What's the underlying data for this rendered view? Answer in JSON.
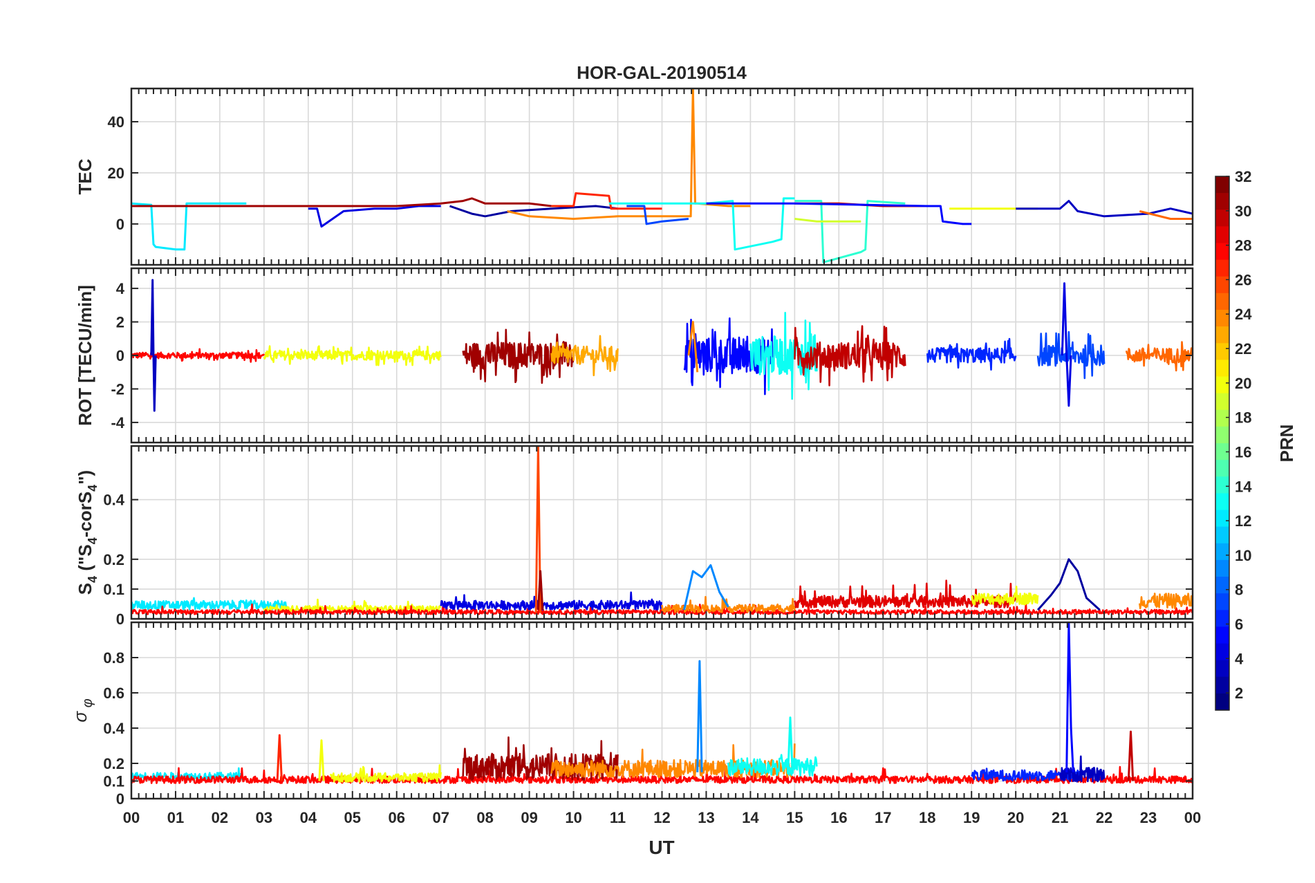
{
  "chart_data": {
    "type": "line",
    "title": "HOR-GAL-20190514",
    "xlabel": "UT",
    "x_ticks": [
      "00",
      "01",
      "02",
      "03",
      "04",
      "05",
      "06",
      "07",
      "08",
      "09",
      "10",
      "11",
      "12",
      "13",
      "14",
      "15",
      "16",
      "17",
      "18",
      "19",
      "20",
      "21",
      "22",
      "23",
      "00"
    ],
    "xlim": [
      0,
      24
    ],
    "colorbar": {
      "label": "PRN",
      "range": [
        1,
        32
      ],
      "ticks": [
        "32",
        "30",
        "28",
        "26",
        "24",
        "22",
        "20",
        "18",
        "16",
        "14",
        "12",
        "10",
        "8",
        "6",
        "4",
        "2"
      ],
      "tick_values": [
        32,
        30,
        28,
        26,
        24,
        22,
        20,
        18,
        16,
        14,
        12,
        10,
        8,
        6,
        4,
        2
      ],
      "colormap": "jet"
    },
    "panels": [
      {
        "id": "tec",
        "ylabel": "TEC",
        "ylim": [
          -16,
          53
        ],
        "y_ticks": [
          "0",
          "20",
          "40"
        ],
        "y_tick_values": [
          0,
          20,
          40
        ],
        "series": [
          {
            "name": "PRN 12",
            "prn": 12,
            "x": [
              0.0,
              0.45,
              0.5,
              0.55,
              1.0,
              1.2,
              1.25,
              1.5,
              2.0,
              2.6
            ],
            "y": [
              8,
              7.5,
              -8,
              -9,
              -10,
              -10,
              8,
              8,
              8,
              8
            ]
          },
          {
            "name": "PRN 4",
            "prn": 4,
            "x": [
              4.0,
              4.2,
              4.3,
              4.8,
              5.5,
              6.0,
              6.5,
              7.0
            ],
            "y": [
              6,
              6,
              -1,
              5,
              6,
              6,
              7,
              7
            ]
          },
          {
            "name": "PRN 31",
            "prn": 31,
            "x": [
              0.0,
              1.0,
              2.0,
              3.0,
              4.0,
              5.0,
              6.0,
              7.0,
              7.5,
              7.7,
              8.0,
              9.0,
              9.5
            ],
            "y": [
              7,
              7,
              7,
              7,
              7,
              7,
              7,
              8,
              9,
              10,
              8,
              8,
              7
            ]
          },
          {
            "name": "PRN 2",
            "prn": 2,
            "x": [
              7.2,
              7.7,
              8.0,
              8.6,
              9.5,
              10.5,
              11.0
            ],
            "y": [
              7,
              4,
              3,
              5,
              6,
              7,
              6
            ]
          },
          {
            "name": "PRN 24",
            "prn": 24,
            "x": [
              8.5,
              9.0,
              10.0,
              11.0,
              12.0,
              12.65,
              12.7,
              12.75,
              12.8,
              13.5,
              14.0
            ],
            "y": [
              5,
              3,
              2,
              3,
              3,
              3,
              53,
              8,
              8,
              7,
              7
            ]
          },
          {
            "name": "PRN 27",
            "prn": 27,
            "x": [
              9.5,
              10.0,
              10.05,
              10.8,
              10.85,
              12.0
            ],
            "y": [
              7,
              7,
              12,
              11,
              6,
              6
            ]
          },
          {
            "name": "PRN 7",
            "prn": 7,
            "x": [
              11.2,
              11.6,
              11.65,
              12.0,
              12.6
            ],
            "y": [
              7,
              7,
              0,
              1,
              2
            ]
          },
          {
            "name": "PRN 13",
            "prn": 13,
            "x": [
              10.8,
              12.0,
              13.0,
              13.6,
              13.65,
              14.5,
              14.7,
              14.75,
              15.0
            ],
            "y": [
              8,
              8,
              8,
              9,
              -10,
              -7,
              -6,
              10,
              10
            ]
          },
          {
            "name": "PRN 14",
            "prn": 14,
            "x": [
              15.0,
              15.6,
              15.65,
              16.5,
              16.6,
              16.65,
              17.5
            ],
            "y": [
              9,
              9,
              -15,
              -11,
              -10,
              9,
              8
            ]
          },
          {
            "name": "PRN 19",
            "prn": 19,
            "x": [
              15.0,
              15.5,
              16.0,
              16.5
            ],
            "y": [
              2,
              1,
              1,
              1
            ]
          },
          {
            "name": "PRN 30",
            "prn": 30,
            "x": [
              15.0,
              16.0,
              17.0,
              18.0,
              18.3
            ],
            "y": [
              8,
              8,
              7,
              7,
              7
            ]
          },
          {
            "name": "PRN 5",
            "prn": 5,
            "x": [
              13.0,
              14.0,
              15.0,
              18.0,
              18.3,
              18.35,
              18.8,
              19.0
            ],
            "y": [
              8,
              8,
              8,
              7,
              7,
              1,
              0,
              0
            ]
          },
          {
            "name": "PRN 20",
            "prn": 20,
            "x": [
              18.5,
              19.5,
              20.5
            ],
            "y": [
              6,
              6,
              6
            ]
          },
          {
            "name": "PRN 3",
            "prn": 3,
            "x": [
              20.0,
              21.0,
              21.2,
              21.4,
              22.0,
              23.0,
              23.5,
              24.0
            ],
            "y": [
              6,
              6,
              9,
              5,
              3,
              4,
              6,
              4
            ]
          },
          {
            "name": "PRN 25",
            "prn": 25,
            "x": [
              22.8,
              23.5,
              24.0
            ],
            "y": [
              5,
              2,
              2
            ]
          }
        ]
      },
      {
        "id": "rot",
        "ylabel": "ROT [TECU/min]",
        "ylim": [
          -5.2,
          5.2
        ],
        "y_ticks": [
          "-4",
          "-2",
          "0",
          "2",
          "4"
        ],
        "y_tick_values": [
          -4,
          -2,
          0,
          2,
          4
        ],
        "series": [
          {
            "name": "PRN 3 spike",
            "prn": 3,
            "x": [
              0.45,
              0.48,
              0.5,
              0.52,
              0.55
            ],
            "y": [
              0,
              4.5,
              0,
              -3.3,
              0
            ]
          },
          {
            "name": "PRN 4 spike",
            "prn": 4,
            "x": [
              21.05,
              21.1,
              21.15,
              21.2,
              21.25
            ],
            "y": [
              0,
              4.3,
              0,
              -3,
              0
            ]
          },
          {
            "name": "PRN 24 spike",
            "prn": 24,
            "x": [
              12.6,
              12.7,
              12.8
            ],
            "y": [
              0,
              2,
              -1
            ]
          }
        ],
        "noise_bands": [
          {
            "prn": 28,
            "from": 0.0,
            "to": 3.0,
            "amp": 0.4
          },
          {
            "prn": 20,
            "from": 3.0,
            "to": 7.0,
            "amp": 0.6
          },
          {
            "prn": 31,
            "from": 7.5,
            "to": 10.0,
            "amp": 1.8
          },
          {
            "prn": 23,
            "from": 9.5,
            "to": 11.0,
            "amp": 1.2
          },
          {
            "prn": 5,
            "from": 12.5,
            "to": 14.5,
            "amp": 2.4
          },
          {
            "prn": 13,
            "from": 14.0,
            "to": 15.5,
            "amp": 2.6
          },
          {
            "prn": 30,
            "from": 15.0,
            "to": 17.5,
            "amp": 1.8
          },
          {
            "prn": 6,
            "from": 18.0,
            "to": 20.0,
            "amp": 1.0
          },
          {
            "prn": 7,
            "from": 20.5,
            "to": 22.0,
            "amp": 1.4
          },
          {
            "prn": 25,
            "from": 22.5,
            "to": 24.0,
            "amp": 1.0
          }
        ]
      },
      {
        "id": "s4",
        "ylabel": "S4 (\"S4-corS4\")",
        "ylim": [
          0,
          0.58
        ],
        "y_ticks": [
          "0",
          "0.1",
          "0.2",
          "0.4"
        ],
        "y_tick_values": [
          0,
          0.1,
          0.2,
          0.4
        ],
        "series": [
          {
            "name": "PRN 26 spike",
            "prn": 26,
            "x": [
              9.15,
              9.2,
              9.25
            ],
            "y": [
              0.02,
              0.58,
              0.02
            ]
          },
          {
            "name": "PRN 31 spike",
            "prn": 31,
            "x": [
              9.2,
              9.25,
              9.3
            ],
            "y": [
              0.03,
              0.16,
              0.03
            ]
          },
          {
            "name": "PRN 9 arc",
            "prn": 9,
            "x": [
              12.5,
              12.7,
              12.9,
              13.1,
              13.3,
              13.5
            ],
            "y": [
              0.03,
              0.16,
              0.14,
              0.18,
              0.09,
              0.04
            ]
          },
          {
            "name": "PRN 2 arc",
            "prn": 2,
            "x": [
              20.5,
              20.8,
              21.0,
              21.2,
              21.4,
              21.6,
              21.9
            ],
            "y": [
              0.03,
              0.08,
              0.12,
              0.2,
              0.16,
              0.07,
              0.03
            ]
          }
        ],
        "noise_bands": [
          {
            "prn": 12,
            "from": 0.0,
            "to": 3.5,
            "base": 0.04,
            "amp": 0.03
          },
          {
            "prn": 20,
            "from": 3.0,
            "to": 7.0,
            "base": 0.03,
            "amp": 0.02
          },
          {
            "prn": 28,
            "from": 0.0,
            "to": 24.0,
            "base": 0.02,
            "amp": 0.015
          },
          {
            "prn": 4,
            "from": 7.0,
            "to": 12.0,
            "base": 0.04,
            "amp": 0.03
          },
          {
            "prn": 24,
            "from": 12.0,
            "to": 15.0,
            "base": 0.03,
            "amp": 0.025
          },
          {
            "prn": 29,
            "from": 15.0,
            "to": 20.0,
            "base": 0.05,
            "amp": 0.04
          },
          {
            "prn": 20,
            "from": 19.0,
            "to": 20.5,
            "base": 0.06,
            "amp": 0.04
          },
          {
            "prn": 24,
            "from": 22.8,
            "to": 24.0,
            "base": 0.05,
            "amp": 0.05
          }
        ]
      },
      {
        "id": "sigma",
        "ylabel": "σφ",
        "ylim": [
          0,
          1.0
        ],
        "y_ticks": [
          "0",
          "0.1",
          "0.2",
          "0.4",
          "0.6",
          "0.8"
        ],
        "y_tick_values": [
          0,
          0.1,
          0.2,
          0.4,
          0.6,
          0.8
        ],
        "series": [
          {
            "name": "PRN 27 spike",
            "prn": 27,
            "x": [
              3.3,
              3.35,
              3.4
            ],
            "y": [
              0.1,
              0.36,
              0.1
            ]
          },
          {
            "name": "PRN 20 spike",
            "prn": 20,
            "x": [
              4.25,
              4.3,
              4.35
            ],
            "y": [
              0.1,
              0.33,
              0.1
            ]
          },
          {
            "name": "PRN 9 spike",
            "prn": 9,
            "x": [
              12.8,
              12.85,
              12.9
            ],
            "y": [
              0.15,
              0.78,
              0.15
            ]
          },
          {
            "name": "PRN 13 spike",
            "prn": 13,
            "x": [
              14.85,
              14.9,
              14.95
            ],
            "y": [
              0.15,
              0.46,
              0.15
            ]
          },
          {
            "name": "PRN 5 spike",
            "prn": 5,
            "x": [
              21.15,
              21.2,
              21.25,
              21.3
            ],
            "y": [
              0.15,
              1.0,
              0.4,
              0.15
            ]
          },
          {
            "name": "PRN 30 spike",
            "prn": 30,
            "x": [
              22.55,
              22.6,
              22.65
            ],
            "y": [
              0.1,
              0.38,
              0.1
            ]
          }
        ],
        "noise_bands": [
          {
            "prn": 12,
            "from": 0.0,
            "to": 2.5,
            "base": 0.12,
            "amp": 0.04
          },
          {
            "prn": 28,
            "from": 0.0,
            "to": 24.0,
            "base": 0.1,
            "amp": 0.04
          },
          {
            "prn": 20,
            "from": 4.5,
            "to": 7.0,
            "base": 0.11,
            "amp": 0.05
          },
          {
            "prn": 31,
            "from": 7.5,
            "to": 11.0,
            "base": 0.15,
            "amp": 0.15
          },
          {
            "prn": 24,
            "from": 9.5,
            "to": 15.0,
            "base": 0.15,
            "amp": 0.1
          },
          {
            "prn": 13,
            "from": 13.5,
            "to": 15.5,
            "base": 0.16,
            "amp": 0.1
          },
          {
            "prn": 6,
            "from": 19.0,
            "to": 21.5,
            "base": 0.12,
            "amp": 0.06
          },
          {
            "prn": 3,
            "from": 21.0,
            "to": 22.0,
            "base": 0.12,
            "amp": 0.08
          }
        ]
      }
    ]
  }
}
